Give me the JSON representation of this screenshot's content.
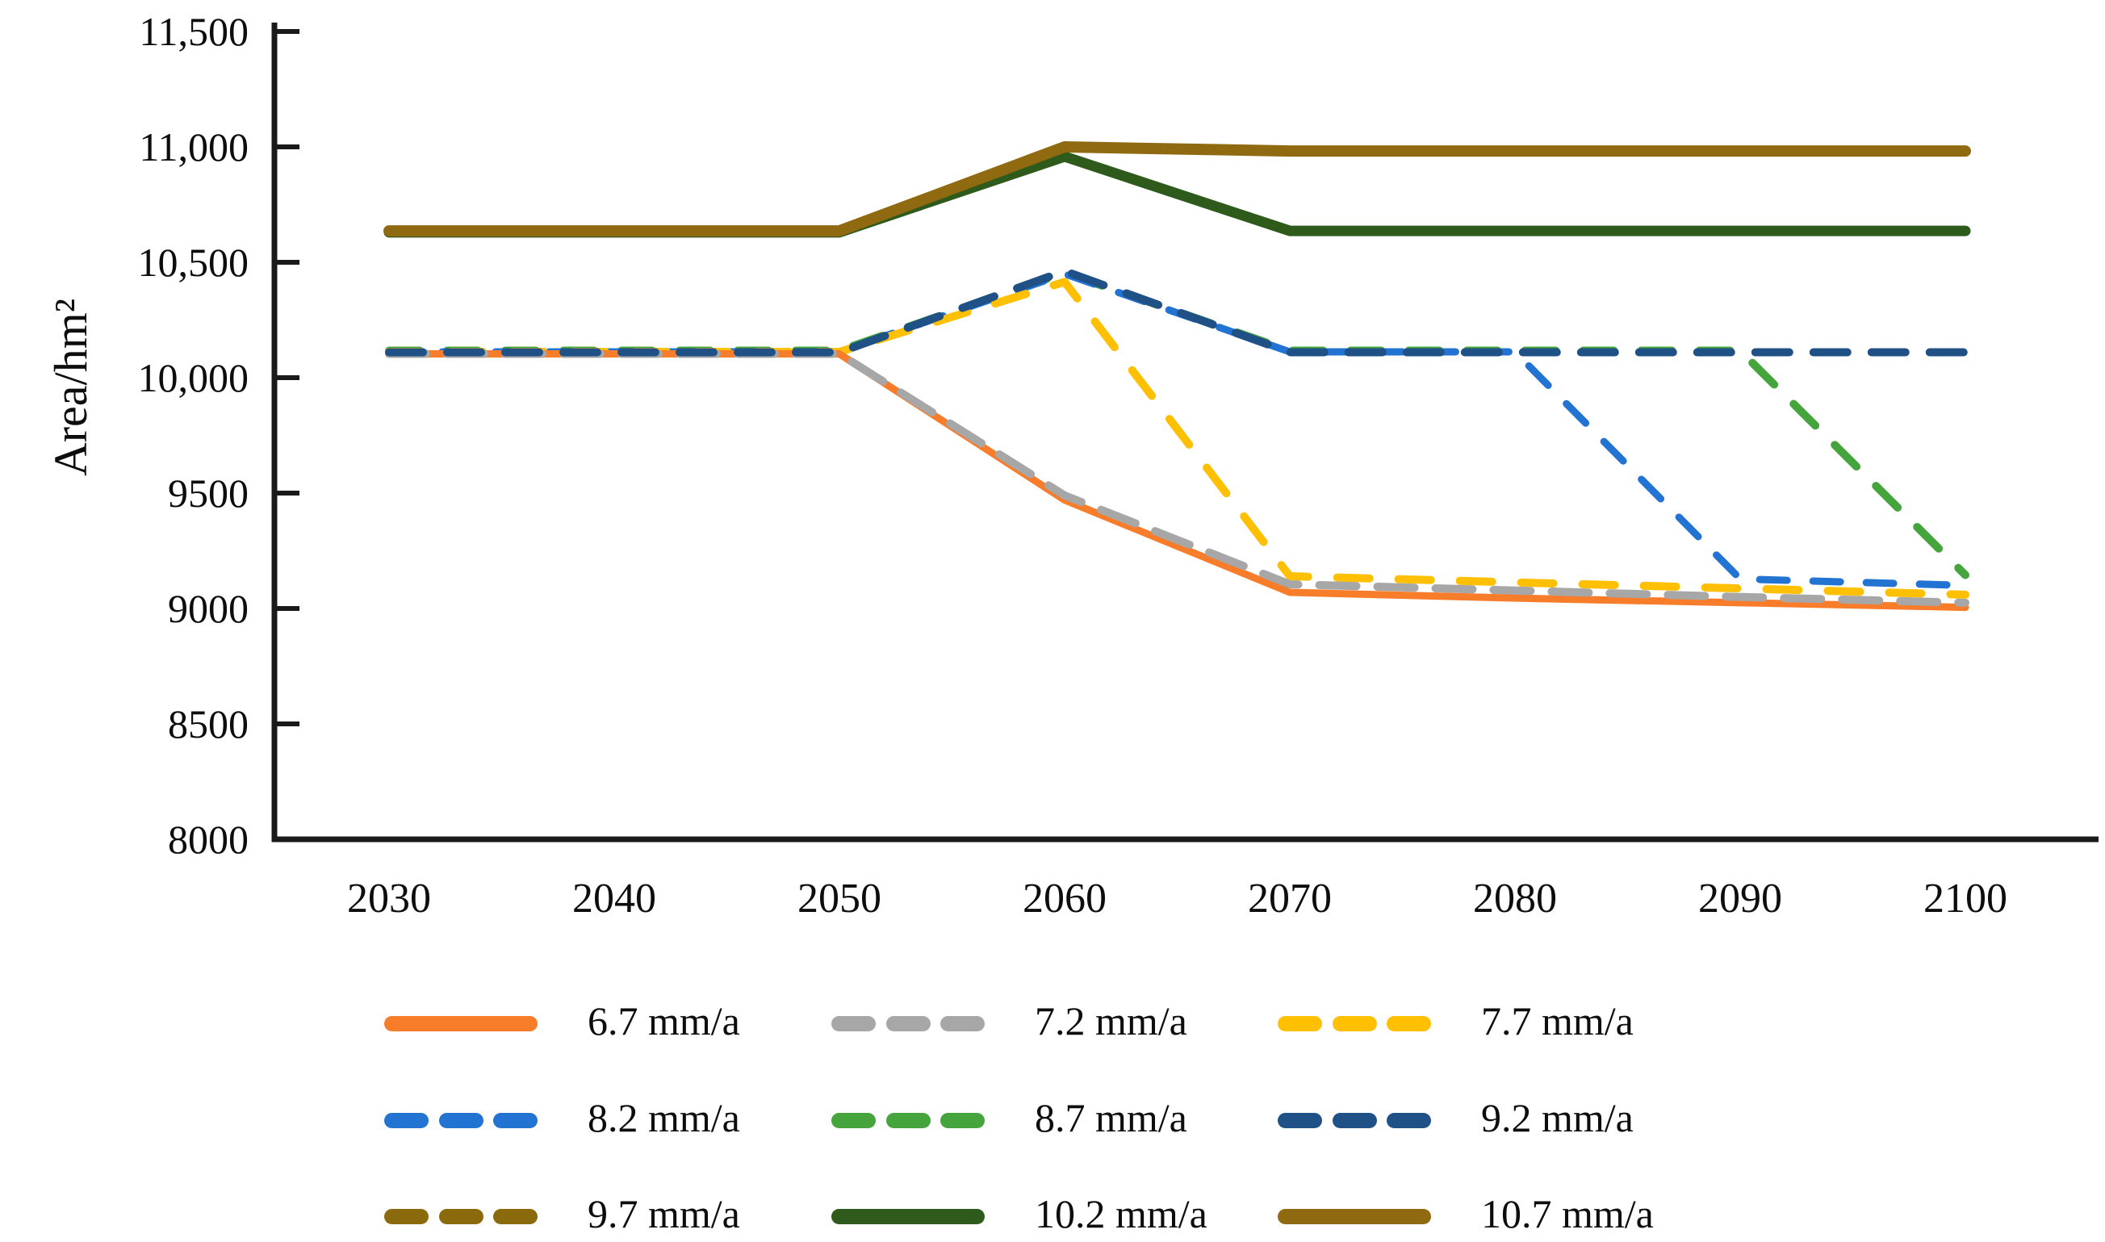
{
  "chart_data": {
    "type": "line",
    "title": "",
    "xlabel": "",
    "ylabel": "Area/hm²",
    "x": [
      2030,
      2040,
      2050,
      2060,
      2070,
      2080,
      2090,
      2100
    ],
    "ylim": [
      8000,
      11500
    ],
    "xlim": [
      2030,
      2100
    ],
    "grid": false,
    "legend_position": "below-chart, 3 columns x 3 rows",
    "axis_color": "#1a1a1a",
    "yticks": [
      {
        "value": 8000,
        "label": "8000"
      },
      {
        "value": 8500,
        "label": "8500"
      },
      {
        "value": 9000,
        "label": "9000"
      },
      {
        "value": 9500,
        "label": "9500"
      },
      {
        "value": 10000,
        "label": "10,000"
      },
      {
        "value": 10500,
        "label": "10,500"
      },
      {
        "value": 11000,
        "label": "11,000"
      },
      {
        "value": 11500,
        "label": "11,500"
      }
    ],
    "series": [
      {
        "label": "6.7 mm/a",
        "color": "#F87D2A",
        "style": "solid",
        "width": 9,
        "values": [
          10103,
          10103,
          10103,
          9470,
          9070,
          9045,
          9025,
          9005
        ]
      },
      {
        "label": "7.2 mm/a",
        "color": "#A7A7A7",
        "style": "dashed",
        "width": 10,
        "dash": [
          46,
          26
        ],
        "values": [
          10103,
          10103,
          10103,
          9490,
          9105,
          9078,
          9050,
          9025
        ]
      },
      {
        "label": "7.7 mm/a",
        "color": "#FFC004",
        "style": "dashed",
        "width": 10,
        "dash": [
          40,
          36
        ],
        "values": [
          10112,
          10112,
          10112,
          10415,
          9140,
          9113,
          9087,
          9060
        ]
      },
      {
        "label": "8.2 mm/a",
        "color": "#2273D2",
        "style": "dashed",
        "width": 9,
        "dash": [
          34,
          32
        ],
        "values": [
          10112,
          10112,
          10112,
          10450,
          10112,
          10112,
          9128,
          9100
        ]
      },
      {
        "label": "8.7 mm/a",
        "color": "#45A53C",
        "style": "dashed",
        "width": 10,
        "dash": [
          38,
          34
        ],
        "values": [
          10117,
          10117,
          10117,
          10455,
          10117,
          10117,
          10117,
          9145
        ]
      },
      {
        "label": "9.2 mm/a",
        "color": "#1F5187",
        "style": "dashed",
        "width": 10,
        "dash": [
          42,
          30
        ],
        "values": [
          10110,
          10110,
          10110,
          10462,
          10110,
          10110,
          10110,
          10110
        ]
      },
      {
        "label": "9.7 mm/a",
        "color": "#8A6A0D",
        "style": "dashed",
        "width": 10,
        "dash": [
          42,
          30
        ],
        "values": [
          10630,
          10630,
          10630,
          10958,
          10632,
          10632,
          10632,
          10632
        ]
      },
      {
        "label": "10.2 mm/a",
        "color": "#2E5A1B",
        "style": "solid",
        "width": 13,
        "values": [
          10630,
          10630,
          10630,
          10958,
          10636,
          10636,
          10636,
          10636
        ]
      },
      {
        "label": "10.7 mm/a",
        "color": "#8F6A10",
        "style": "solid",
        "width": 14,
        "values": [
          10636,
          10636,
          10636,
          11000,
          10982,
          10982,
          10982,
          10982
        ]
      }
    ],
    "z_order": [
      6,
      7,
      8,
      4,
      3,
      2,
      0,
      1,
      5
    ],
    "legend": {
      "items": [
        "6.7 mm/a",
        "7.2 mm/a",
        "7.7 mm/a",
        "8.2 mm/a",
        "8.7 mm/a",
        "9.2 mm/a",
        "9.7 mm/a",
        "10.2 mm/a",
        "10.7 mm/a"
      ]
    }
  }
}
